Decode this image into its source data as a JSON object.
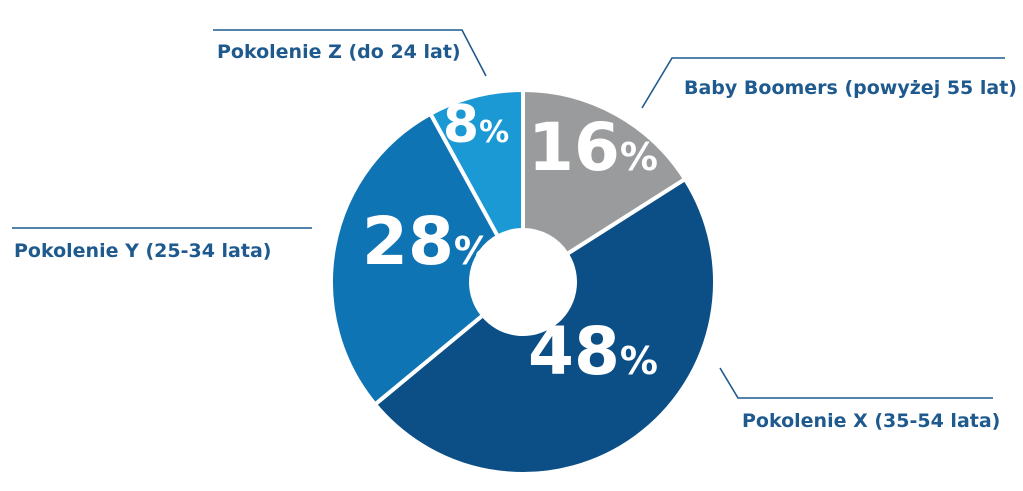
{
  "chart_data": {
    "type": "pie",
    "donut": true,
    "title": "",
    "slices": [
      {
        "label": "Baby Boomers (powyżej 55 lat)",
        "value": 16,
        "display": "16",
        "unit": "%",
        "color": "#9a9b9d"
      },
      {
        "label": "Pokolenie X (35-54 lata)",
        "value": 48,
        "display": "48",
        "unit": "%",
        "color": "#0b4f86"
      },
      {
        "label": "Pokolenie Y (25-34 lata)",
        "value": 28,
        "display": "28",
        "unit": "%",
        "color": "#0f74b3"
      },
      {
        "label": "Pokolenie Z (do 24 lat)",
        "value": 8,
        "display": "8",
        "unit": "%",
        "color": "#1a99d4"
      }
    ],
    "label_color": "#1f5a8e",
    "separator_color": "#ffffff"
  }
}
